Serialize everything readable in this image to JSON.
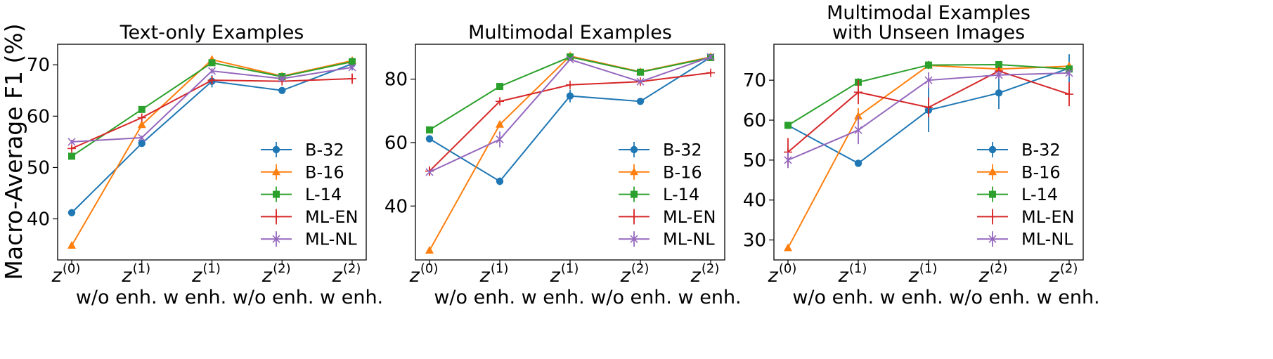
{
  "y_axis_label": "Macro-Average F1 (%)",
  "x_tick_labels": [
    {
      "var": "z",
      "sup": "(0)"
    },
    {
      "var": "z",
      "sup": "(1)"
    },
    {
      "var": "z",
      "sup": "(1)"
    },
    {
      "var": "z",
      "sup": "(2)"
    },
    {
      "var": "z",
      "sup": "(2)"
    }
  ],
  "x_caption": "w/o enh. w enh. w/o enh. w enh.",
  "series_colors": {
    "B-32": "#1f77b4",
    "B-16": "#ff7f0e",
    "L-14": "#2ca02c",
    "ML-EN": "#d62728",
    "ML-NL": "#9467bd"
  },
  "series_markers": {
    "B-32": "circle",
    "B-16": "triangle",
    "L-14": "square",
    "ML-EN": "plus",
    "ML-NL": "x"
  },
  "chart_data": [
    {
      "type": "line",
      "title": [
        "Text-only Examples"
      ],
      "categories": [
        "z(0)",
        "z(1) w/o enh.",
        "z(1) w enh.",
        "z(2) w/o enh.",
        "z(2) w enh."
      ],
      "ylim": [
        32,
        74
      ],
      "yticks": [
        40,
        50,
        60,
        70
      ],
      "legend": "lower-right",
      "series": [
        {
          "name": "B-32",
          "values": [
            41.2,
            54.7,
            66.8,
            65.0,
            70.2
          ],
          "err": [
            0.5,
            0.5,
            1.2,
            0.5,
            1.3
          ]
        },
        {
          "name": "B-16",
          "values": [
            34.8,
            58.3,
            71.0,
            67.8,
            70.8
          ],
          "err": [
            0.3,
            0.4,
            0.5,
            0.5,
            0.5
          ]
        },
        {
          "name": "L-14",
          "values": [
            52.2,
            61.3,
            70.4,
            67.7,
            70.6
          ],
          "err": [
            0.6,
            0.5,
            0.5,
            0.7,
            0.8
          ]
        },
        {
          "name": "ML-EN",
          "values": [
            53.7,
            59.7,
            67.0,
            66.8,
            67.3
          ],
          "err": [
            0.4,
            0.4,
            0.8,
            0.4,
            1.0
          ]
        },
        {
          "name": "ML-NL",
          "values": [
            55.0,
            55.8,
            68.8,
            67.3,
            69.5
          ],
          "err": [
            0.4,
            0.4,
            0.5,
            0.5,
            0.5
          ]
        }
      ]
    },
    {
      "type": "line",
      "title": [
        "Multimodal Examples"
      ],
      "categories": [
        "z(0)",
        "z(1) w/o enh.",
        "z(1) w enh.",
        "z(2) w/o enh.",
        "z(2) w enh."
      ],
      "ylim": [
        23,
        91
      ],
      "yticks": [
        40,
        60,
        80
      ],
      "legend": "lower-right",
      "series": [
        {
          "name": "B-32",
          "values": [
            61.2,
            47.8,
            74.7,
            73.0,
            86.9
          ],
          "err": [
            0.8,
            1.2,
            2.0,
            0.5,
            0.6
          ]
        },
        {
          "name": "B-16",
          "values": [
            26.0,
            65.7,
            87.3,
            82.3,
            87.0
          ],
          "err": [
            0.3,
            0.5,
            0.5,
            1.0,
            0.5
          ]
        },
        {
          "name": "L-14",
          "values": [
            64.0,
            77.7,
            87.0,
            82.2,
            86.8
          ],
          "err": [
            0.5,
            0.5,
            0.5,
            0.8,
            0.5
          ]
        },
        {
          "name": "ML-EN",
          "values": [
            51.0,
            73.0,
            78.2,
            79.2,
            82.0
          ],
          "err": [
            1.5,
            0.5,
            0.5,
            0.5,
            0.5
          ]
        },
        {
          "name": "ML-NL",
          "values": [
            50.7,
            61.0,
            86.2,
            79.2,
            87.0
          ],
          "err": [
            0.5,
            2.5,
            0.5,
            0.5,
            0.8
          ]
        }
      ]
    },
    {
      "type": "line",
      "title": [
        "Multimodal Examples",
        "with Unseen Images"
      ],
      "categories": [
        "z(0)",
        "z(1) w/o enh.",
        "z(1) w enh.",
        "z(2) w/o enh.",
        "z(2) w enh."
      ],
      "ylim": [
        25,
        79
      ],
      "yticks": [
        30,
        40,
        50,
        60,
        70
      ],
      "legend": "lower-right",
      "series": [
        {
          "name": "B-32",
          "values": [
            58.7,
            49.2,
            62.5,
            66.8,
            73.0
          ],
          "err": [
            0.5,
            0.5,
            5.5,
            4.0,
            3.5
          ]
        },
        {
          "name": "B-16",
          "values": [
            28.0,
            61.0,
            73.7,
            72.8,
            73.5
          ],
          "err": [
            0.3,
            2.0,
            0.5,
            0.5,
            0.5
          ]
        },
        {
          "name": "L-14",
          "values": [
            58.7,
            69.5,
            73.8,
            73.9,
            72.8
          ],
          "err": [
            0.5,
            1.0,
            1.0,
            0.5,
            0.8
          ]
        },
        {
          "name": "ML-EN",
          "values": [
            52.0,
            67.0,
            63.2,
            72.3,
            66.5
          ],
          "err": [
            3.5,
            3.0,
            2.5,
            1.0,
            3.0
          ]
        },
        {
          "name": "ML-NL",
          "values": [
            50.0,
            57.5,
            70.0,
            71.3,
            71.8
          ],
          "err": [
            2.0,
            3.5,
            2.0,
            1.0,
            1.0
          ]
        }
      ]
    }
  ]
}
